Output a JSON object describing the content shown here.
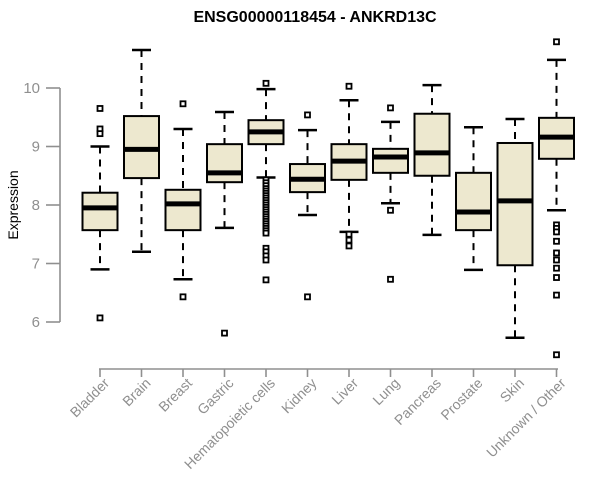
{
  "page": {
    "title": "ENSG00000118454 - ANKRD13C"
  },
  "colors": {
    "background": "#ffffff",
    "box_fill": "#ede8cf",
    "box_border": "#000000",
    "median": "#000000",
    "whisker": "#000000",
    "outlier": "#000000",
    "axis": "#8f8f8f",
    "tick_label": "#8f8f8f",
    "title": "#000000"
  },
  "chart_data": {
    "type": "boxplot",
    "title": "ENSG00000118454 - ANKRD13C",
    "xlabel": "",
    "ylabel": "Expression",
    "ylim": [
      5.4,
      10.8
    ],
    "yticks": [
      6,
      7,
      8,
      9,
      10
    ],
    "grid": false,
    "legend": null,
    "categories": [
      "Bladder",
      "Brain",
      "Breast",
      "Gastric",
      "Hematopoietic cells",
      "Kidney",
      "Liver",
      "Lung",
      "Pancreas",
      "Prostate",
      "Skin",
      "Unknown / Other"
    ],
    "series": [
      {
        "name": "Bladder",
        "whisker_low": 6.9,
        "q1": 7.57,
        "median": 7.95,
        "q3": 8.21,
        "whisker_high": 9.0,
        "outliers": [
          9.65,
          9.3,
          9.22,
          6.07
        ]
      },
      {
        "name": "Brain",
        "whisker_low": 7.2,
        "q1": 8.46,
        "median": 8.95,
        "q3": 9.52,
        "whisker_high": 10.65,
        "outliers": []
      },
      {
        "name": "Breast",
        "whisker_low": 6.73,
        "q1": 7.57,
        "median": 8.02,
        "q3": 8.26,
        "whisker_high": 9.3,
        "outliers": [
          9.73,
          6.43
        ]
      },
      {
        "name": "Gastric",
        "whisker_low": 7.61,
        "q1": 8.39,
        "median": 8.55,
        "q3": 9.04,
        "whisker_high": 9.59,
        "outliers": [
          5.81
        ]
      },
      {
        "name": "Hematopoietic cells",
        "whisker_low": 8.47,
        "q1": 9.04,
        "median": 9.25,
        "q3": 9.45,
        "whisker_high": 9.98,
        "outliers": [
          10.08,
          8.43,
          8.38,
          8.33,
          8.28,
          8.24,
          8.2,
          8.16,
          8.12,
          8.08,
          8.04,
          8.0,
          7.96,
          7.92,
          7.88,
          7.84,
          7.8,
          7.76,
          7.72,
          7.68,
          7.64,
          7.6,
          7.56,
          7.52,
          7.26,
          7.2,
          7.13,
          7.06,
          6.72
        ]
      },
      {
        "name": "Kidney",
        "whisker_low": 7.83,
        "q1": 8.22,
        "median": 8.44,
        "q3": 8.7,
        "whisker_high": 9.28,
        "outliers": [
          9.54,
          6.43
        ]
      },
      {
        "name": "Liver",
        "whisker_low": 7.54,
        "q1": 8.43,
        "median": 8.75,
        "q3": 9.04,
        "whisker_high": 9.79,
        "outliers": [
          10.03,
          7.5,
          7.4,
          7.3
        ]
      },
      {
        "name": "Lung",
        "whisker_low": 8.03,
        "q1": 8.55,
        "median": 8.82,
        "q3": 8.96,
        "whisker_high": 9.42,
        "outliers": [
          9.66,
          7.91,
          6.73
        ]
      },
      {
        "name": "Pancreas",
        "whisker_low": 7.49,
        "q1": 8.5,
        "median": 8.89,
        "q3": 9.56,
        "whisker_high": 10.05,
        "outliers": []
      },
      {
        "name": "Prostate",
        "whisker_low": 6.89,
        "q1": 7.57,
        "median": 7.88,
        "q3": 8.55,
        "whisker_high": 9.33,
        "outliers": []
      },
      {
        "name": "Skin",
        "whisker_low": 5.73,
        "q1": 6.97,
        "median": 8.07,
        "q3": 9.06,
        "whisker_high": 9.47,
        "outliers": []
      },
      {
        "name": "Unknown / Other",
        "whisker_low": 7.91,
        "q1": 8.79,
        "median": 9.16,
        "q3": 9.49,
        "whisker_high": 10.48,
        "outliers": [
          10.79,
          7.66,
          7.6,
          7.54,
          7.38,
          7.18,
          7.06,
          6.92,
          6.76,
          6.46,
          5.44
        ]
      }
    ]
  }
}
